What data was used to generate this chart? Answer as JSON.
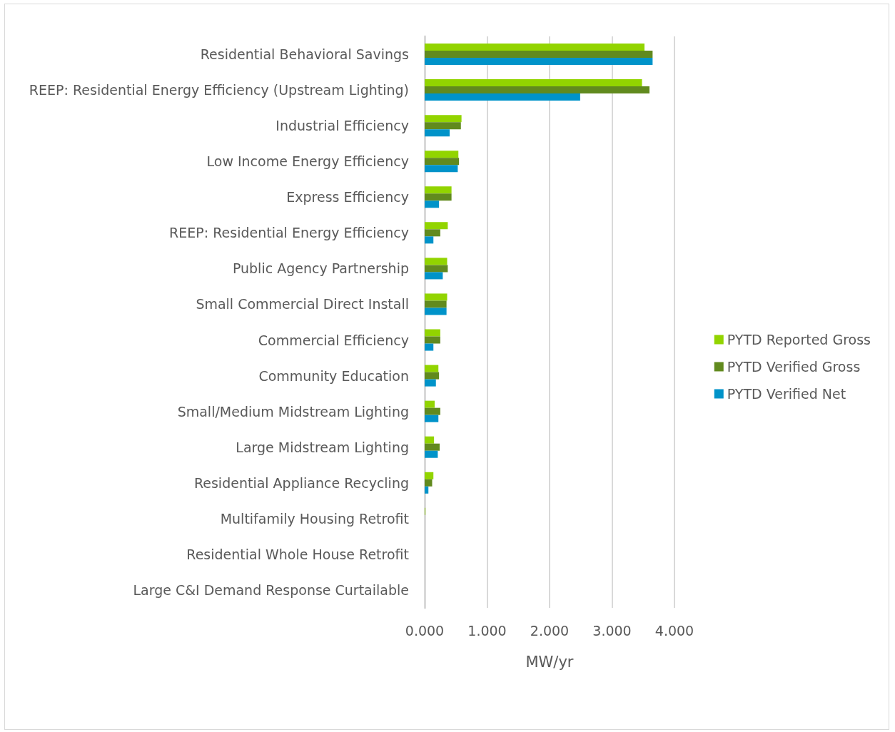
{
  "chart_data": {
    "type": "bar",
    "orientation": "horizontal",
    "xlabel": "MW/yr",
    "categories": [
      "Residential Behavioral Savings",
      "REEP: Residential Energy Efficiency (Upstream Lighting)",
      "Industrial Efficiency",
      "Low Income Energy Efficiency",
      "Express Efficiency",
      "REEP: Residential Energy Efficiency",
      "Public Agency Partnership",
      "Small Commercial Direct Install",
      "Commercial Efficiency",
      "Community Education",
      "Small/Medium Midstream Lighting",
      "Large Midstream Lighting",
      "Residential Appliance Recycling",
      "Multifamily Housing Retrofit",
      "Residential Whole House Retrofit",
      "Large C&I Demand Response Curtailable"
    ],
    "series": [
      {
        "name": "PYTD Reported Gross",
        "color": "#92d400",
        "values": [
          3.52,
          3.48,
          0.59,
          0.54,
          0.43,
          0.37,
          0.36,
          0.36,
          0.25,
          0.22,
          0.16,
          0.15,
          0.14,
          0.01,
          0,
          0
        ]
      },
      {
        "name": "PYTD Verified Gross",
        "color": "#618a1e",
        "values": [
          3.65,
          3.6,
          0.58,
          0.55,
          0.43,
          0.25,
          0.37,
          0.35,
          0.25,
          0.23,
          0.25,
          0.24,
          0.12,
          0,
          0,
          0
        ]
      },
      {
        "name": "PYTD Verified Net",
        "color": "#0093c9",
        "values": [
          3.65,
          2.49,
          0.4,
          0.53,
          0.23,
          0.14,
          0.29,
          0.35,
          0.14,
          0.18,
          0.22,
          0.21,
          0.06,
          0,
          0,
          0
        ]
      }
    ],
    "xlim": [
      0,
      4
    ],
    "xticks": [
      {
        "value": 0,
        "label": "0.000"
      },
      {
        "value": 1,
        "label": "1.000"
      },
      {
        "value": 2,
        "label": "2.000"
      },
      {
        "value": 3,
        "label": "3.000"
      },
      {
        "value": 4,
        "label": "4.000"
      }
    ],
    "grid": "x",
    "legend": "right"
  }
}
